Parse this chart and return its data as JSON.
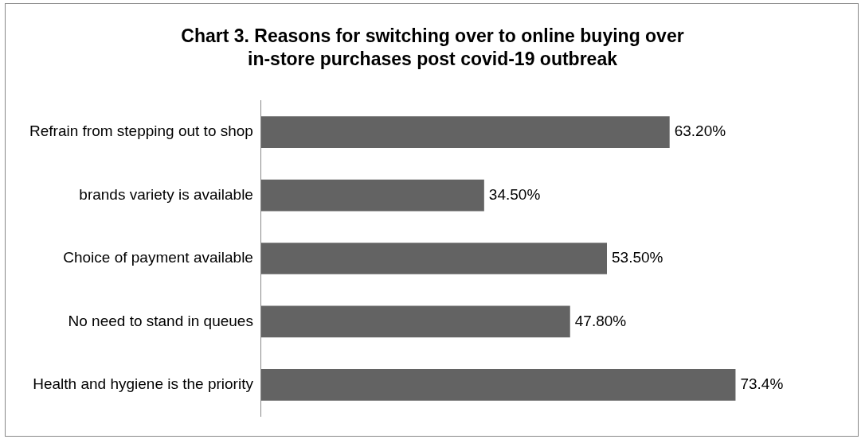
{
  "chart_data": {
    "type": "bar",
    "orientation": "horizontal",
    "title": "Chart 3. Reasons for switching over to online buying over in-store purchases post covid-19 outbreak",
    "categories": [
      "Refrain from stepping out to shop",
      "brands variety is available",
      "Choice of payment available",
      "No need to stand in queues",
      "Health and hygiene is the priority"
    ],
    "values": [
      63.2,
      34.5,
      53.5,
      47.8,
      73.4
    ],
    "value_labels": [
      "63.20%",
      "34.50%",
      "53.50%",
      "47.80%",
      "73.4%"
    ],
    "color": "#636363",
    "grid": false,
    "legend": false,
    "tick_labels": "y"
  }
}
